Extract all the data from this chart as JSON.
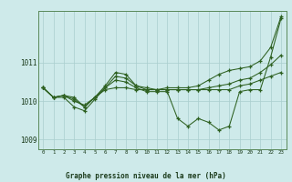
{
  "xlabel": "Graphe pression niveau de la mer (hPa)",
  "background_color": "#ceeaea",
  "plot_bg_color": "#ceeaea",
  "grid_color": "#aacece",
  "line_color": "#2d6020",
  "xlim_min": -0.5,
  "xlim_max": 23.5,
  "ylim_min": 1008.75,
  "ylim_max": 1012.35,
  "xticks": [
    0,
    1,
    2,
    3,
    4,
    5,
    6,
    7,
    8,
    9,
    10,
    11,
    12,
    13,
    14,
    15,
    16,
    17,
    18,
    19,
    20,
    21,
    22,
    23
  ],
  "yticks": [
    1009,
    1010,
    1011
  ],
  "s1": [
    1010.35,
    1010.1,
    1010.1,
    1009.85,
    1009.75,
    1010.05,
    1010.35,
    1010.55,
    1010.5,
    1010.35,
    1010.25,
    1010.25,
    1010.25,
    1009.55,
    1009.35,
    1009.55,
    1009.45,
    1009.25,
    1009.35,
    1010.25,
    1010.3,
    1010.3,
    1011.15,
    1012.15
  ],
  "s2": [
    1010.35,
    1010.1,
    1010.15,
    1010.0,
    1009.9,
    1010.1,
    1010.3,
    1010.35,
    1010.35,
    1010.3,
    1010.3,
    1010.3,
    1010.3,
    1010.3,
    1010.3,
    1010.3,
    1010.3,
    1010.3,
    1010.3,
    1010.4,
    1010.45,
    1010.55,
    1010.65,
    1010.75
  ],
  "s3": [
    1010.35,
    1010.1,
    1010.15,
    1010.05,
    1009.85,
    1010.1,
    1010.35,
    1010.65,
    1010.6,
    1010.4,
    1010.3,
    1010.3,
    1010.3,
    1010.3,
    1010.3,
    1010.3,
    1010.35,
    1010.4,
    1010.45,
    1010.55,
    1010.6,
    1010.75,
    1010.95,
    1011.2
  ],
  "s4": [
    1010.35,
    1010.1,
    1010.15,
    1010.1,
    1009.85,
    1010.1,
    1010.4,
    1010.75,
    1010.7,
    1010.4,
    1010.35,
    1010.3,
    1010.35,
    1010.35,
    1010.35,
    1010.4,
    1010.55,
    1010.7,
    1010.8,
    1010.85,
    1010.9,
    1011.05,
    1011.4,
    1012.2
  ]
}
